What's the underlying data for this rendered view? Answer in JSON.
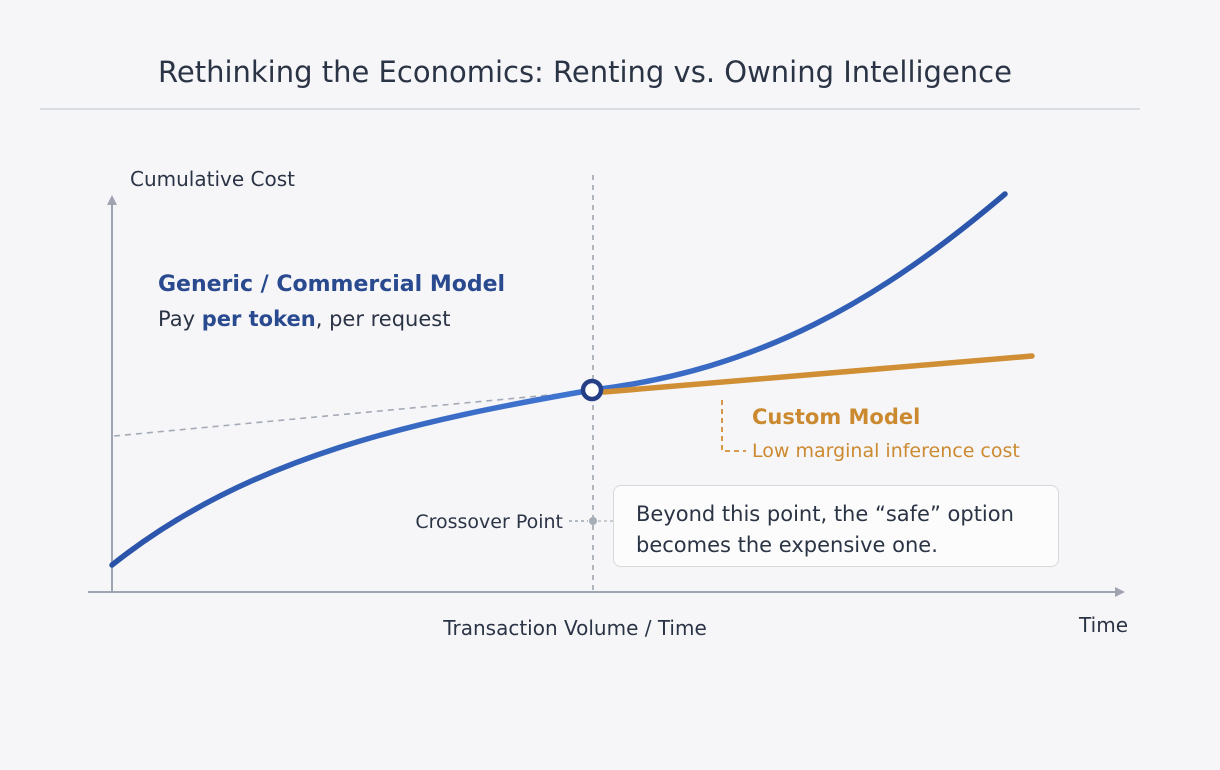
{
  "title": "Rethinking the Economics: Renting vs. Owning Intelligence",
  "y_axis_label": "Cumulative Cost",
  "x_axis_label": "Transaction Volume / Time",
  "x_axis_end_label": "Time",
  "generic_model": {
    "title": "Generic / Commercial Model",
    "subtitle_prefix": "Pay ",
    "subtitle_bold": "per token",
    "subtitle_suffix": ", per request"
  },
  "custom_model": {
    "title": "Custom Model",
    "subtitle": "Low marginal inference cost"
  },
  "crossover_label": "Crossover Point",
  "annotation": {
    "line1": "Beyond this point, the “safe” option",
    "line2": "becomes the expensive one."
  },
  "colors": {
    "generic": "#2a53a8",
    "custom": "#d08f34",
    "axis": "#9ea5b0",
    "title_text": "#2b3445"
  }
}
